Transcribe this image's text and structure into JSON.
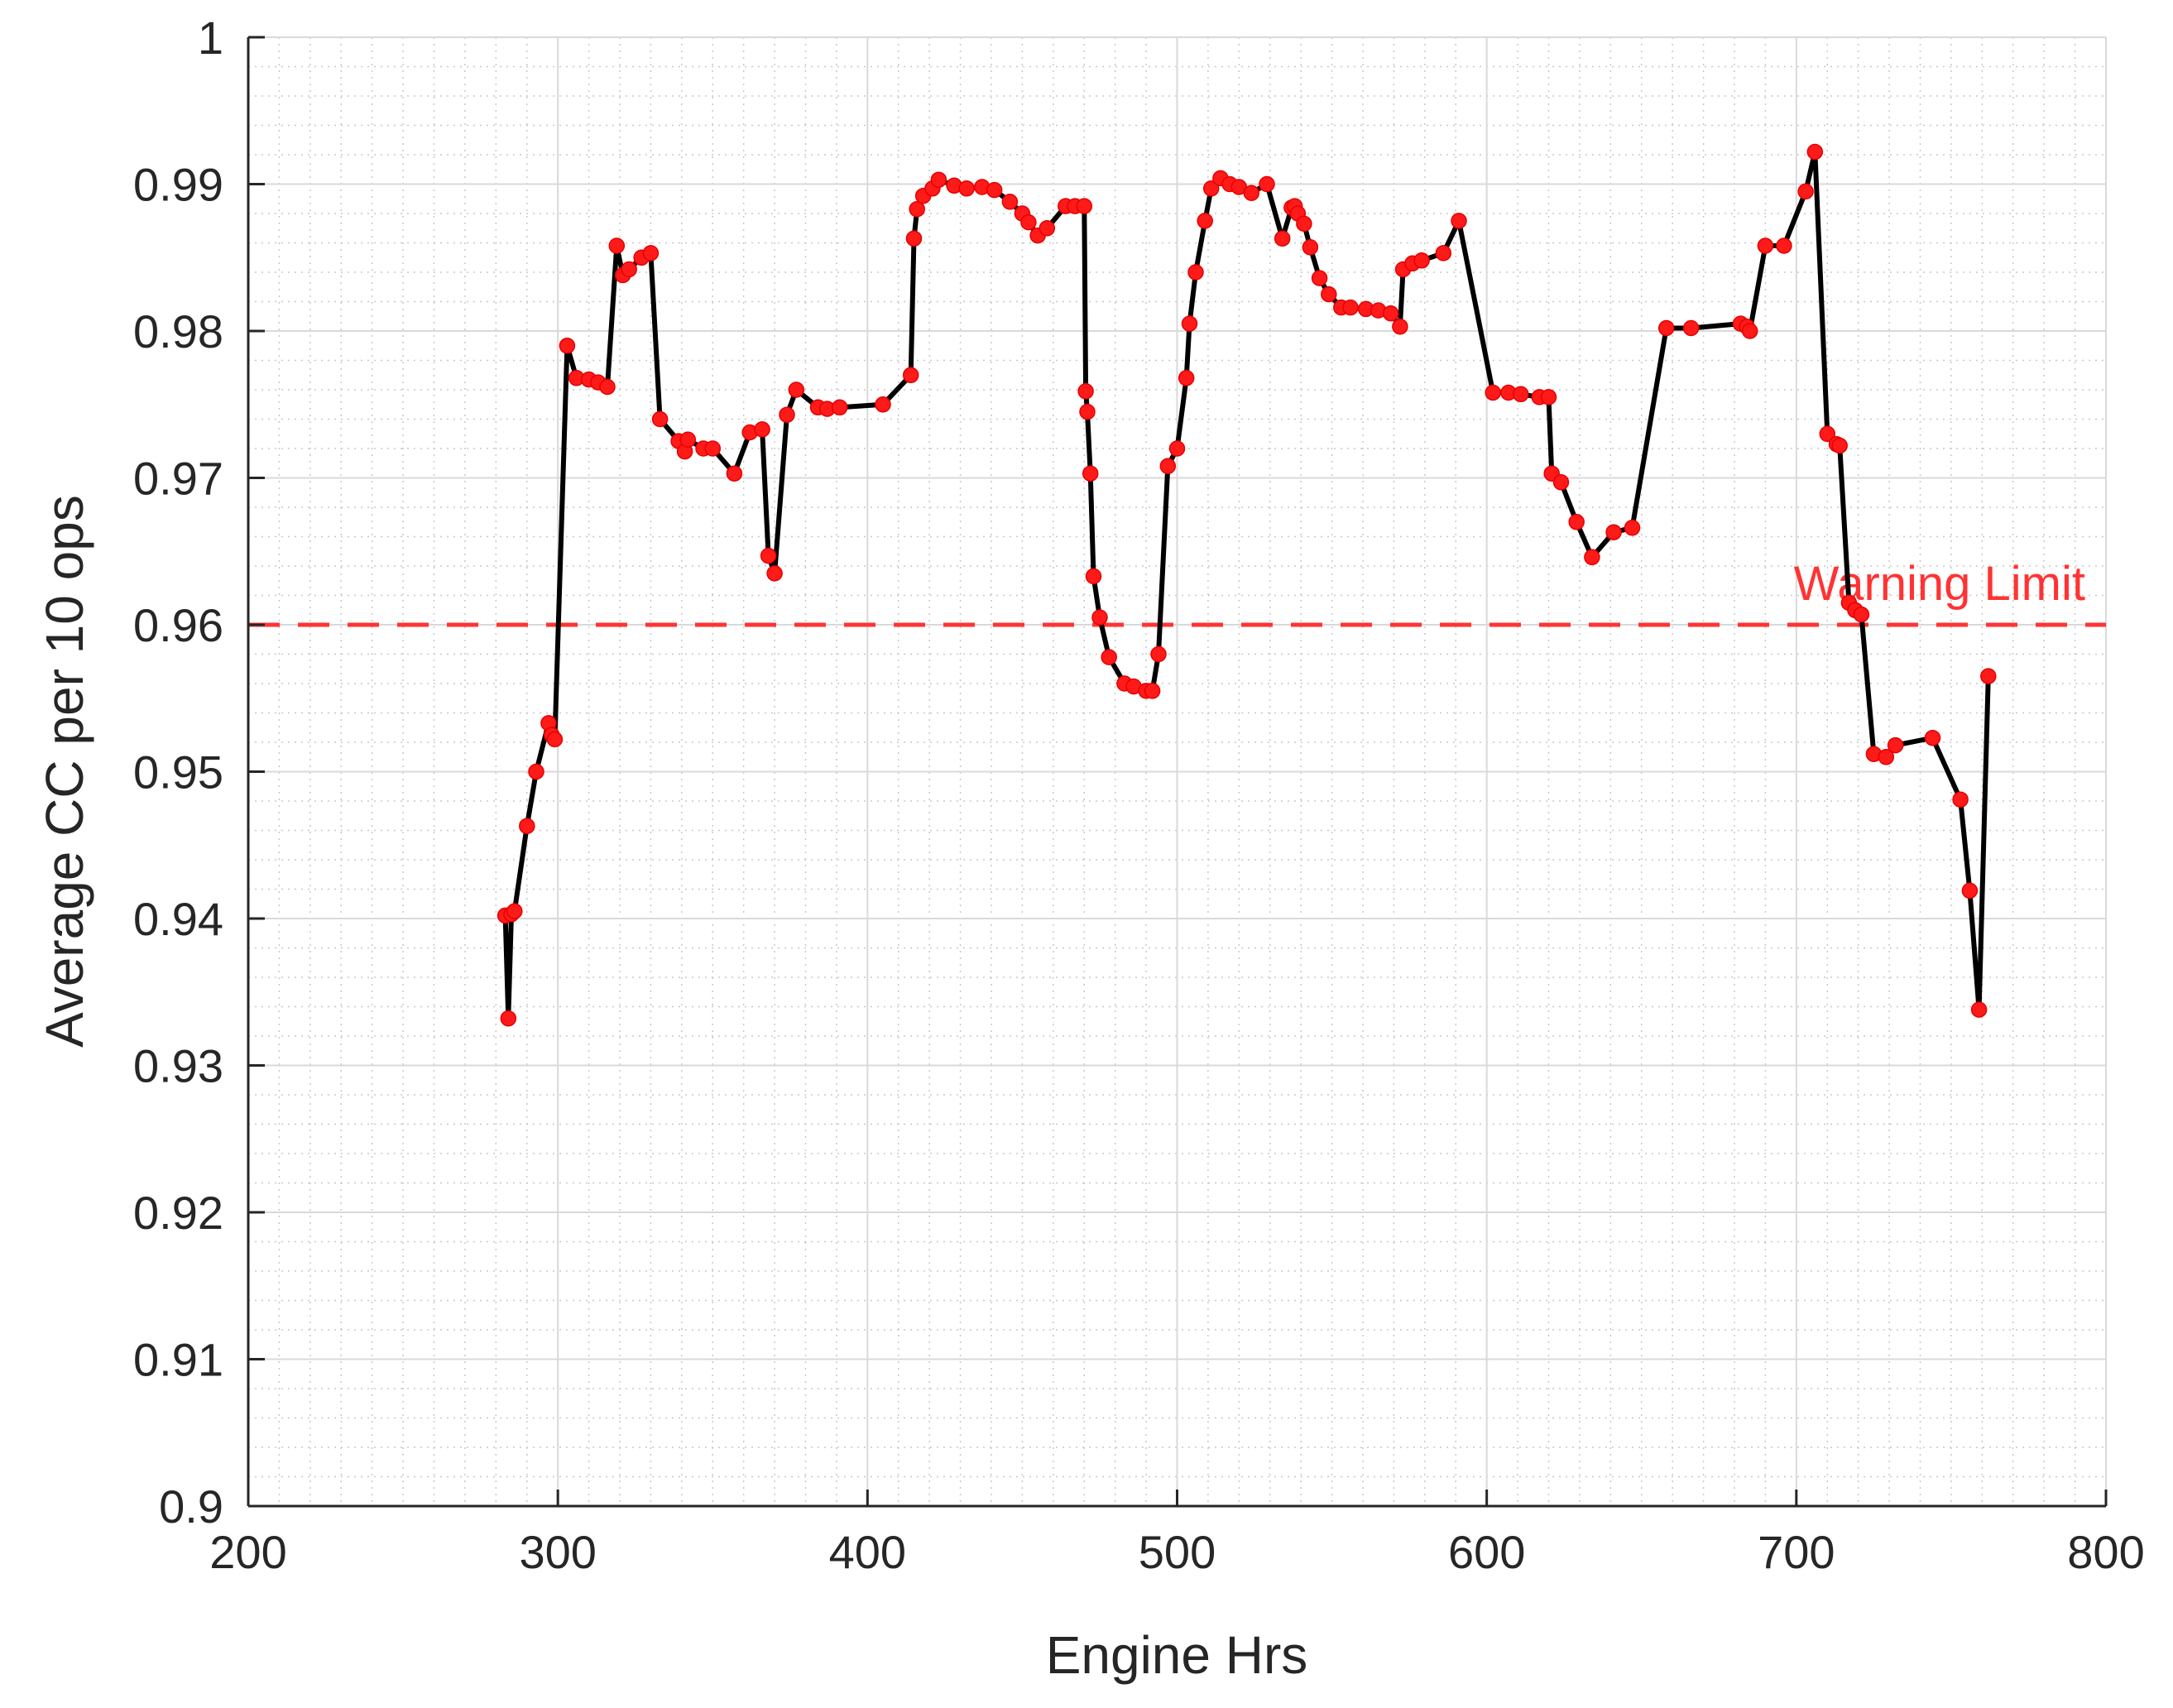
{
  "chart_data": {
    "type": "line",
    "title": "",
    "xlabel": "Engine Hrs",
    "ylabel": "Average CC per 10 ops",
    "xlim": [
      200,
      800
    ],
    "ylim": [
      0.9,
      1.0
    ],
    "xticks": [
      200,
      300,
      400,
      500,
      600,
      700,
      800
    ],
    "yticks": [
      0.9,
      0.91,
      0.92,
      0.93,
      0.94,
      0.95,
      0.96,
      0.97,
      0.98,
      0.99,
      1.0
    ],
    "xtick_labels": [
      "200",
      "300",
      "400",
      "500",
      "600",
      "700",
      "800"
    ],
    "ytick_labels": [
      "0.9",
      "0.91",
      "0.92",
      "0.93",
      "0.94",
      "0.95",
      "0.96",
      "0.97",
      "0.98",
      "0.99",
      "1"
    ],
    "grid": true,
    "minor_grid": true,
    "line_color": "#000000",
    "marker_color": "#ff1a1a",
    "series": [
      {
        "x": [
          283,
          284,
          285,
          286,
          290,
          293,
          297,
          298,
          299,
          303,
          306,
          310,
          313,
          316,
          319,
          321,
          323,
          327,
          330,
          333,
          339,
          341,
          342,
          347,
          350,
          357,
          362,
          366,
          368,
          370,
          374,
          377,
          384,
          387,
          391,
          405,
          414,
          415,
          416,
          418,
          421,
          423,
          428,
          432,
          437,
          441,
          446,
          450,
          452,
          455,
          458,
          464,
          467,
          470,
          470.5,
          471,
          472,
          473,
          475,
          478,
          483,
          486,
          490,
          492,
          494,
          497,
          500,
          503,
          504,
          506,
          509,
          511,
          514,
          517,
          520,
          524,
          529,
          534,
          537,
          538,
          539,
          541,
          543,
          546,
          549,
          553,
          556,
          561,
          565,
          569,
          572,
          573,
          576,
          579,
          586,
          591,
          602,
          607,
          611,
          617,
          620,
          621,
          624,
          629,
          634,
          641,
          647,
          658,
          666,
          682,
          684,
          685,
          690,
          696,
          703,
          706,
          710,
          713,
          714,
          717,
          719,
          721,
          725,
          729,
          732,
          744,
          753,
          756,
          759,
          762
        ],
        "y": [
          0.9402,
          0.9332,
          0.9403,
          0.9405,
          0.9463,
          0.95,
          0.9533,
          0.9525,
          0.9522,
          0.979,
          0.9768,
          0.9767,
          0.9765,
          0.9762,
          0.9858,
          0.9838,
          0.9842,
          0.985,
          0.9853,
          0.974,
          0.9725,
          0.9718,
          0.9726,
          0.972,
          0.972,
          0.9703,
          0.9731,
          0.9733,
          0.9647,
          0.9635,
          0.9743,
          0.976,
          0.9748,
          0.9747,
          0.9748,
          0.975,
          0.977,
          0.9863,
          0.9883,
          0.9892,
          0.9897,
          0.9903,
          0.9899,
          0.9897,
          0.9898,
          0.9896,
          0.9888,
          0.988,
          0.9874,
          0.9865,
          0.987,
          0.9885,
          0.9885,
          0.9885,
          0.9759,
          0.9745,
          0.9703,
          0.9633,
          0.9605,
          0.9578,
          0.956,
          0.9558,
          0.9555,
          0.9555,
          0.958,
          0.9708,
          0.972,
          0.9768,
          0.9805,
          0.984,
          0.9875,
          0.9897,
          0.9904,
          0.99,
          0.9898,
          0.9894,
          0.99,
          0.9863,
          0.9884,
          0.9885,
          0.988,
          0.9873,
          0.9857,
          0.9836,
          0.9825,
          0.9816,
          0.9816,
          0.9815,
          0.9814,
          0.9812,
          0.9803,
          0.9842,
          0.9846,
          0.9848,
          0.9853,
          0.9875,
          0.9758,
          0.9758,
          0.9757,
          0.9755,
          0.9755,
          0.9703,
          0.9697,
          0.967,
          0.9646,
          0.9663,
          0.9666,
          0.9802,
          0.9802,
          0.9805,
          0.9803,
          0.98,
          0.9858,
          0.9858,
          0.9895,
          0.9922,
          0.973,
          0.9723,
          0.9722,
          0.9615,
          0.961,
          0.9607,
          0.9512,
          0.951,
          0.9518,
          0.9523,
          0.9481,
          0.9419,
          0.9338,
          0.9565
        ]
      }
    ],
    "reference_lines": [
      {
        "y": 0.96,
        "label": "Warning Limit",
        "color": "#ff3333",
        "style": "dashed"
      }
    ]
  }
}
